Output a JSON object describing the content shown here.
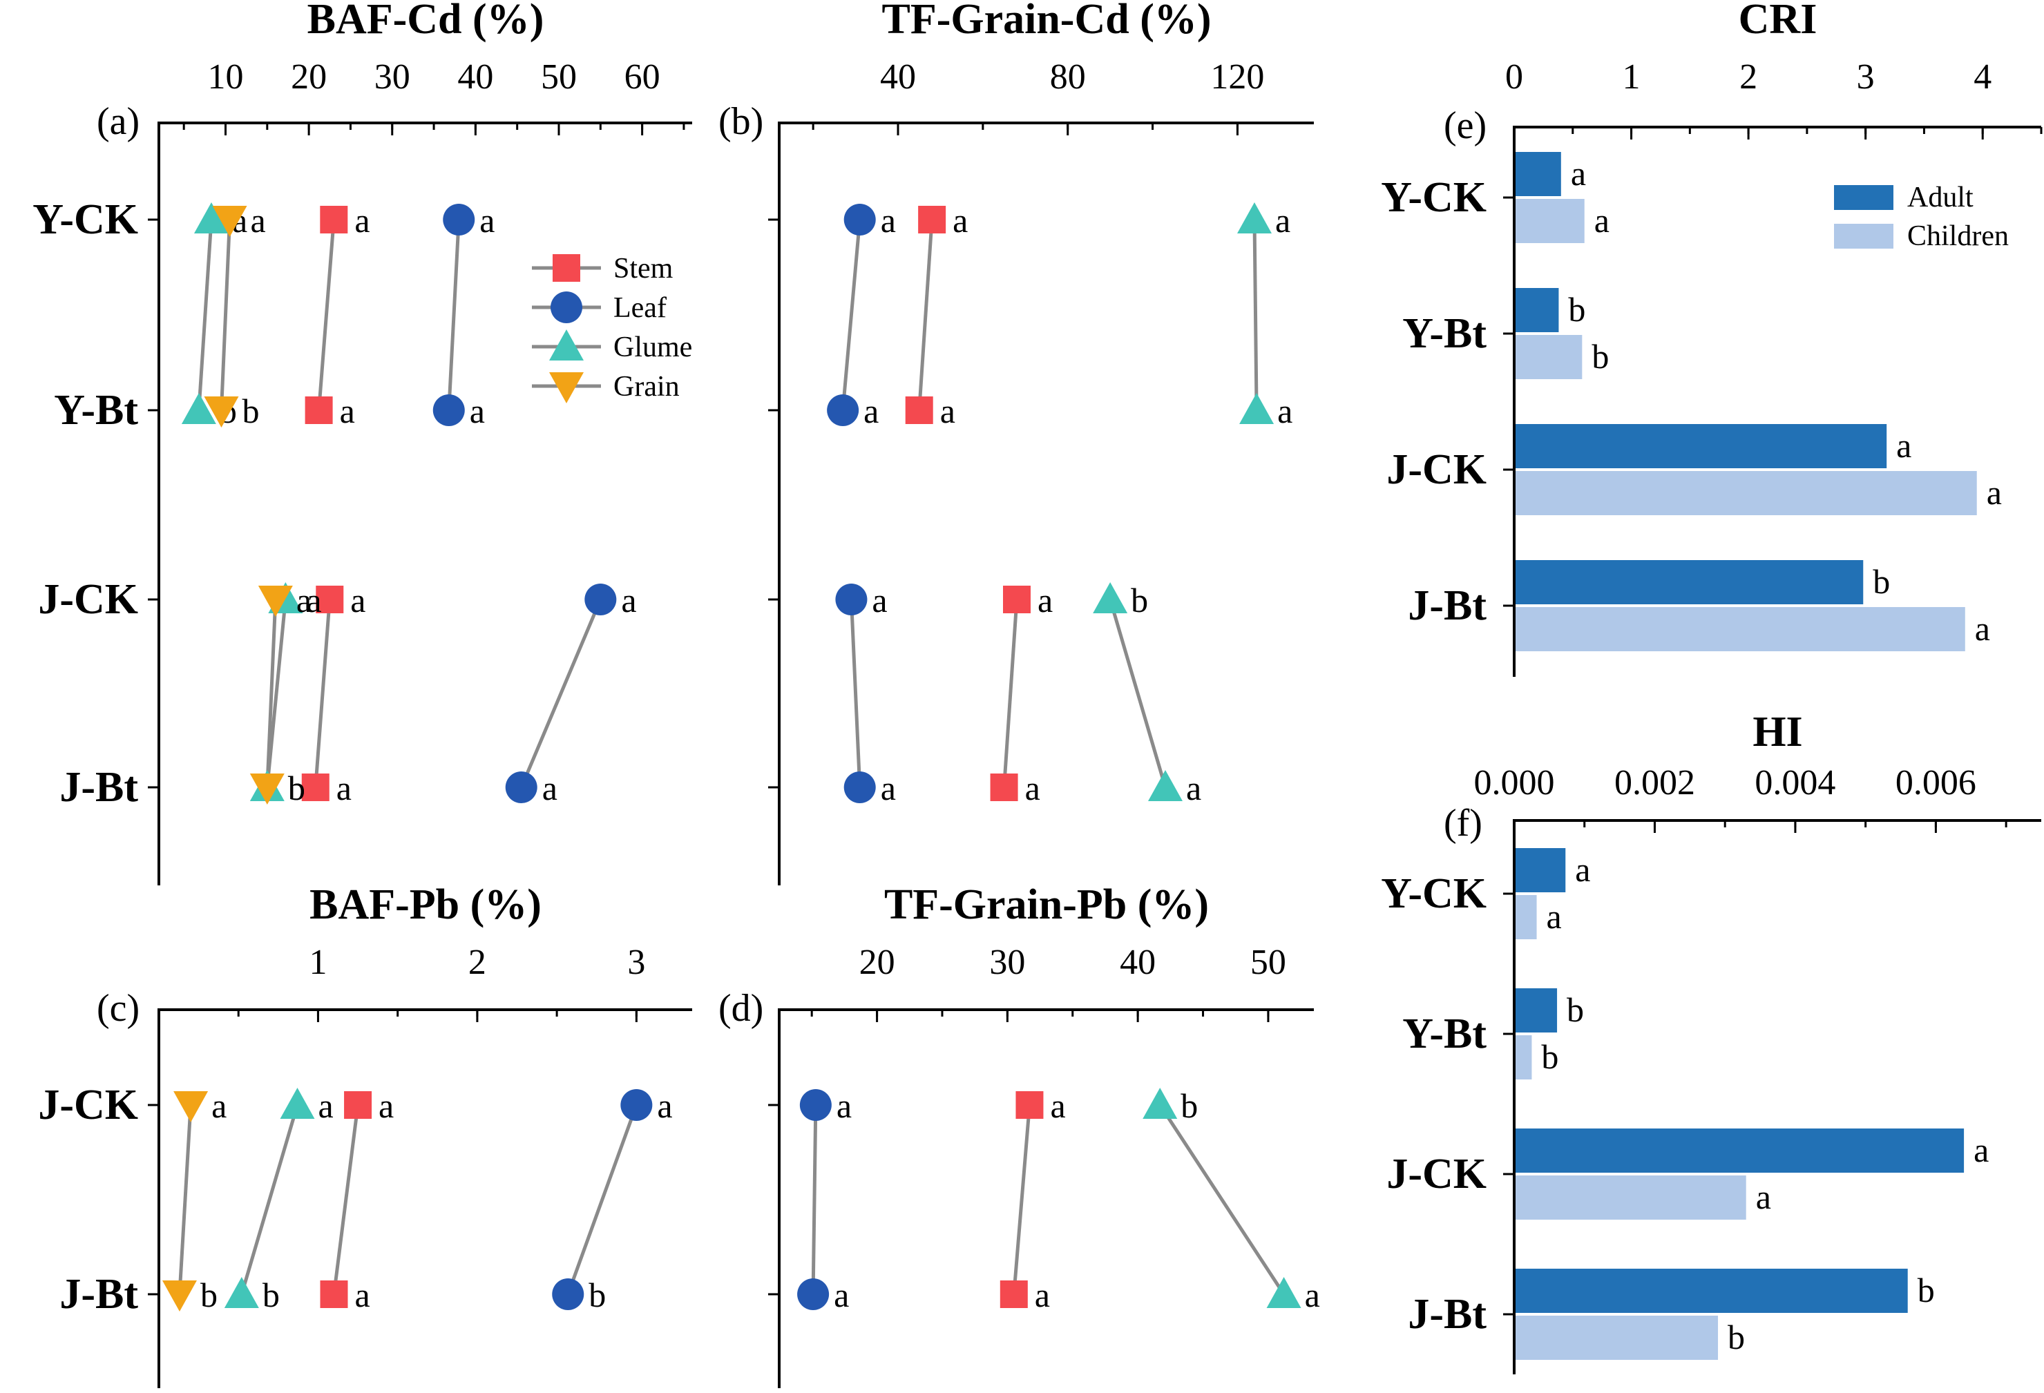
{
  "colors": {
    "Stem": "#f4494f",
    "Leaf": "#2457b0",
    "Glume": "#42c5b8",
    "Grain": "#f2a316",
    "Adult": "#2271b5",
    "Children": "#b0c8e8",
    "line": "#8a8a8a",
    "axis": "#000000"
  },
  "marker_shapes": {
    "Stem": "square",
    "Leaf": "circle",
    "Glume": "triangle-up",
    "Grain": "triangle-down"
  },
  "legend_dot": {
    "items": [
      "Stem",
      "Leaf",
      "Glume",
      "Grain"
    ],
    "placement": "top-right of panel (a)"
  },
  "legend_bar": {
    "items": [
      "Adult",
      "Children"
    ],
    "placement": "top-right of panel (e)"
  },
  "chart_data": [
    {
      "id": "a",
      "panel_label": "(a)",
      "type": "scatter",
      "title": "BAF-Cd (%)",
      "xlim": [
        2,
        66
      ],
      "xticks": [
        10,
        20,
        30,
        40,
        50,
        60
      ],
      "minor_step": 5,
      "categories": [
        "Y-CK",
        "Y-Bt",
        "J-CK",
        "J-Bt"
      ],
      "series": [
        {
          "name": "Stem",
          "values": [
            23.0,
            21.2,
            22.5,
            20.8
          ],
          "sig": [
            "a",
            "a",
            "a",
            "a"
          ]
        },
        {
          "name": "Leaf",
          "values": [
            38.0,
            36.8,
            55.0,
            45.5
          ],
          "sig": [
            "a",
            "a",
            "a",
            "a"
          ]
        },
        {
          "name": "Glume",
          "values": [
            8.3,
            6.8,
            17.2,
            15.0
          ],
          "sig": [
            "a",
            "b",
            "a",
            "b"
          ]
        },
        {
          "name": "Grain",
          "values": [
            10.5,
            9.5,
            16.0,
            15.0
          ],
          "sig": [
            "a",
            "b",
            "a",
            "b"
          ]
        }
      ]
    },
    {
      "id": "b",
      "panel_label": "(b)",
      "type": "scatter",
      "title": "TF-Grain-Cd (%)",
      "xlim": [
        12,
        138
      ],
      "xticks": [
        40,
        80,
        120
      ],
      "minor_step": 20,
      "categories": [
        "Y-CK",
        "Y-Bt",
        "J-CK",
        "J-Bt"
      ],
      "series": [
        {
          "name": "Stem",
          "values": [
            48,
            45,
            68,
            65
          ],
          "sig": [
            "a",
            "a",
            "a",
            "a"
          ]
        },
        {
          "name": "Leaf",
          "values": [
            31,
            27,
            29,
            31
          ],
          "sig": [
            "a",
            "a",
            "a",
            "a"
          ]
        },
        {
          "name": "Glume",
          "values": [
            124,
            124.5,
            90,
            103
          ],
          "sig": [
            "a",
            "a",
            "b",
            "a"
          ]
        }
      ]
    },
    {
      "id": "c",
      "panel_label": "(c)",
      "type": "scatter",
      "title": "BAF-Pb (%)",
      "xlim": [
        0,
        3.35
      ],
      "xticks": [
        1,
        2,
        3
      ],
      "minor_step": 0.5,
      "categories": [
        "J-CK",
        "J-Bt"
      ],
      "series": [
        {
          "name": "Stem",
          "values": [
            1.25,
            1.1
          ],
          "sig": [
            "a",
            "a"
          ]
        },
        {
          "name": "Leaf",
          "values": [
            3.0,
            2.57
          ],
          "sig": [
            "a",
            "b"
          ]
        },
        {
          "name": "Glume",
          "values": [
            0.87,
            0.52
          ],
          "sig": [
            "a",
            "b"
          ]
        },
        {
          "name": "Grain",
          "values": [
            0.2,
            0.13
          ],
          "sig": [
            "a",
            "b"
          ]
        }
      ]
    },
    {
      "id": "d",
      "panel_label": "(d)",
      "type": "scatter",
      "title": "TF-Grain-Pb (%)",
      "xlim": [
        12.5,
        53.5
      ],
      "xticks": [
        20,
        30,
        40,
        50
      ],
      "minor_step": 5,
      "categories": [
        "J-CK",
        "J-Bt"
      ],
      "series": [
        {
          "name": "Stem",
          "values": [
            31.7,
            30.5
          ],
          "sig": [
            "a",
            "a"
          ]
        },
        {
          "name": "Leaf",
          "values": [
            15.3,
            15.1
          ],
          "sig": [
            "a",
            "a"
          ]
        },
        {
          "name": "Glume",
          "values": [
            41.7,
            51.2
          ],
          "sig": [
            "b",
            "a"
          ]
        }
      ]
    },
    {
      "id": "e",
      "panel_label": "(e)",
      "type": "bar",
      "title": "CRI",
      "xlim": [
        0,
        4.5
      ],
      "xticks": [
        0,
        1,
        2,
        3,
        4
      ],
      "minor_step": 0.5,
      "categories": [
        "Y-CK",
        "Y-Bt",
        "J-CK",
        "J-Bt"
      ],
      "series": [
        {
          "name": "Adult",
          "values": [
            0.4,
            0.38,
            3.18,
            2.98
          ],
          "sig": [
            "a",
            "b",
            "a",
            "b"
          ]
        },
        {
          "name": "Children",
          "values": [
            0.6,
            0.58,
            3.95,
            3.85
          ],
          "sig": [
            "a",
            "b",
            "a",
            "a"
          ]
        }
      ]
    },
    {
      "id": "f",
      "panel_label": "(f)",
      "type": "bar",
      "title": "HI",
      "xlim": [
        0,
        0.0075
      ],
      "xticks": [
        "0.000",
        "0.002",
        "0.004",
        "0.006"
      ],
      "minor_step": 0.001,
      "categories": [
        "Y-CK",
        "Y-Bt",
        "J-CK",
        "J-Bt"
      ],
      "series": [
        {
          "name": "Adult",
          "values": [
            0.00073,
            0.00061,
            0.0064,
            0.0056
          ],
          "sig": [
            "a",
            "b",
            "a",
            "b"
          ]
        },
        {
          "name": "Children",
          "values": [
            0.00032,
            0.00025,
            0.0033,
            0.0029
          ],
          "sig": [
            "a",
            "b",
            "a",
            "b"
          ]
        }
      ]
    }
  ]
}
